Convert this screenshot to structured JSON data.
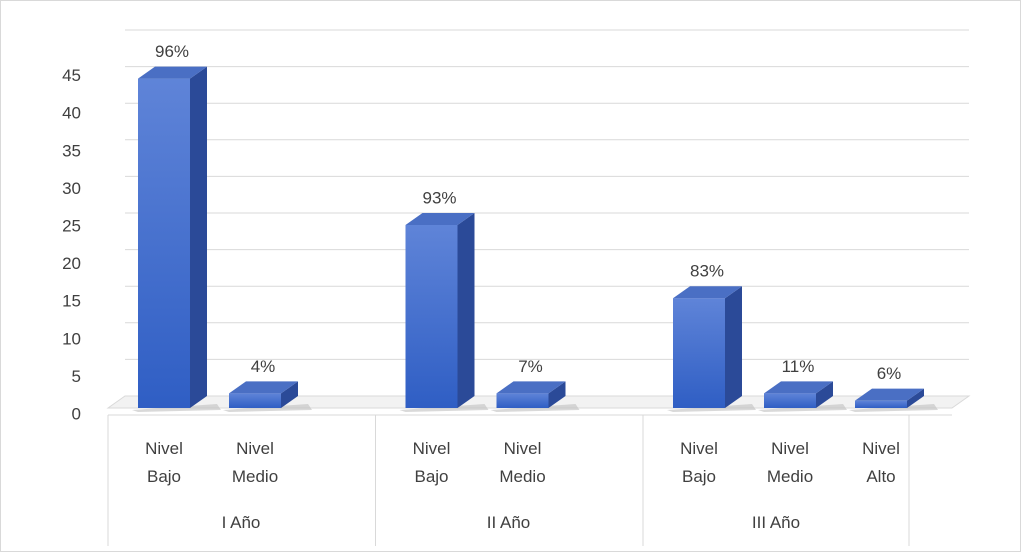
{
  "chart_data": {
    "type": "bar",
    "groups": [
      {
        "name": "I Año",
        "categories": [
          "Nivel Bajo",
          "Nivel Medio"
        ],
        "values": [
          45,
          2
        ],
        "data_labels": [
          "96%",
          "4%"
        ]
      },
      {
        "name": "II Año",
        "categories": [
          "Nivel Bajo",
          "Nivel Medio"
        ],
        "values": [
          25,
          2
        ],
        "data_labels": [
          "93%",
          "7%"
        ]
      },
      {
        "name": "III Año",
        "categories": [
          "Nivel Bajo",
          "Nivel Medio",
          "Nivel Alto"
        ],
        "values": [
          15,
          2,
          1
        ],
        "data_labels": [
          "83%",
          "11%",
          "6%"
        ]
      }
    ],
    "ylim": [
      0,
      50
    ],
    "yticks": [
      0,
      5,
      10,
      15,
      20,
      25,
      30,
      35,
      40,
      45
    ],
    "grid": true,
    "color": "#3a66c8"
  }
}
